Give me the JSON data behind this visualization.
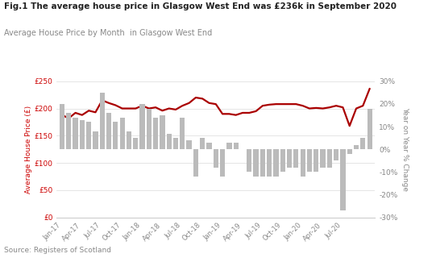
{
  "title_bold": "Fig.1 The average house price in Glasgow West End was £236k in September 2020",
  "subtitle": "Average House Price by Month  in Glasgow West End",
  "source": "Source: Registers of Scotland",
  "left_ylabel": "Average House Price (£)",
  "right_ylabel": "Year on Year % Change",
  "bar_color": "#bbbbbb",
  "line_color": "#aa0000",
  "title_color": "#222222",
  "subtitle_color": "#888888",
  "source_color": "#888888",
  "left_label_color": "#cc0000",
  "right_label_color": "#888888",
  "background_color": "#ffffff",
  "xtick_labels": [
    "Jan-17",
    "Apr-17",
    "Jul-17",
    "Oct-17",
    "Jan-18",
    "Apr-18",
    "Jul-18",
    "Oct-18",
    "Jan-19",
    "Apr-19",
    "Jul-19",
    "Oct-19",
    "Jan-20",
    "Apr-20",
    "Jul-20"
  ],
  "prices": [
    188,
    182,
    192,
    188,
    196,
    193,
    215,
    210,
    206,
    200,
    200,
    200,
    205,
    200,
    202,
    196,
    200,
    198,
    205,
    210,
    220,
    218,
    210,
    208,
    190,
    190,
    188,
    192,
    192,
    195,
    205,
    207,
    208,
    208,
    208,
    208,
    205,
    200,
    201,
    200,
    202,
    205,
    202,
    168,
    200,
    205,
    236
  ],
  "yoy_pct": [
    20,
    16,
    14,
    13,
    12,
    8,
    25,
    16,
    12,
    14,
    8,
    5,
    20,
    18,
    14,
    15,
    7,
    5,
    14,
    4,
    -12,
    5,
    3,
    -8,
    -12,
    3,
    3,
    0,
    -10,
    -12,
    -12,
    -12,
    -12,
    -10,
    -8,
    -8,
    -12,
    -10,
    -10,
    -8,
    -8,
    -5,
    -27,
    -2,
    2,
    5,
    18
  ],
  "left_ylim": [
    0,
    250
  ],
  "right_ylim": [
    -30,
    30
  ],
  "left_yticks": [
    0,
    50,
    100,
    150,
    200,
    250
  ],
  "right_yticks": [
    -30,
    -20,
    -10,
    0,
    10,
    20,
    30
  ]
}
